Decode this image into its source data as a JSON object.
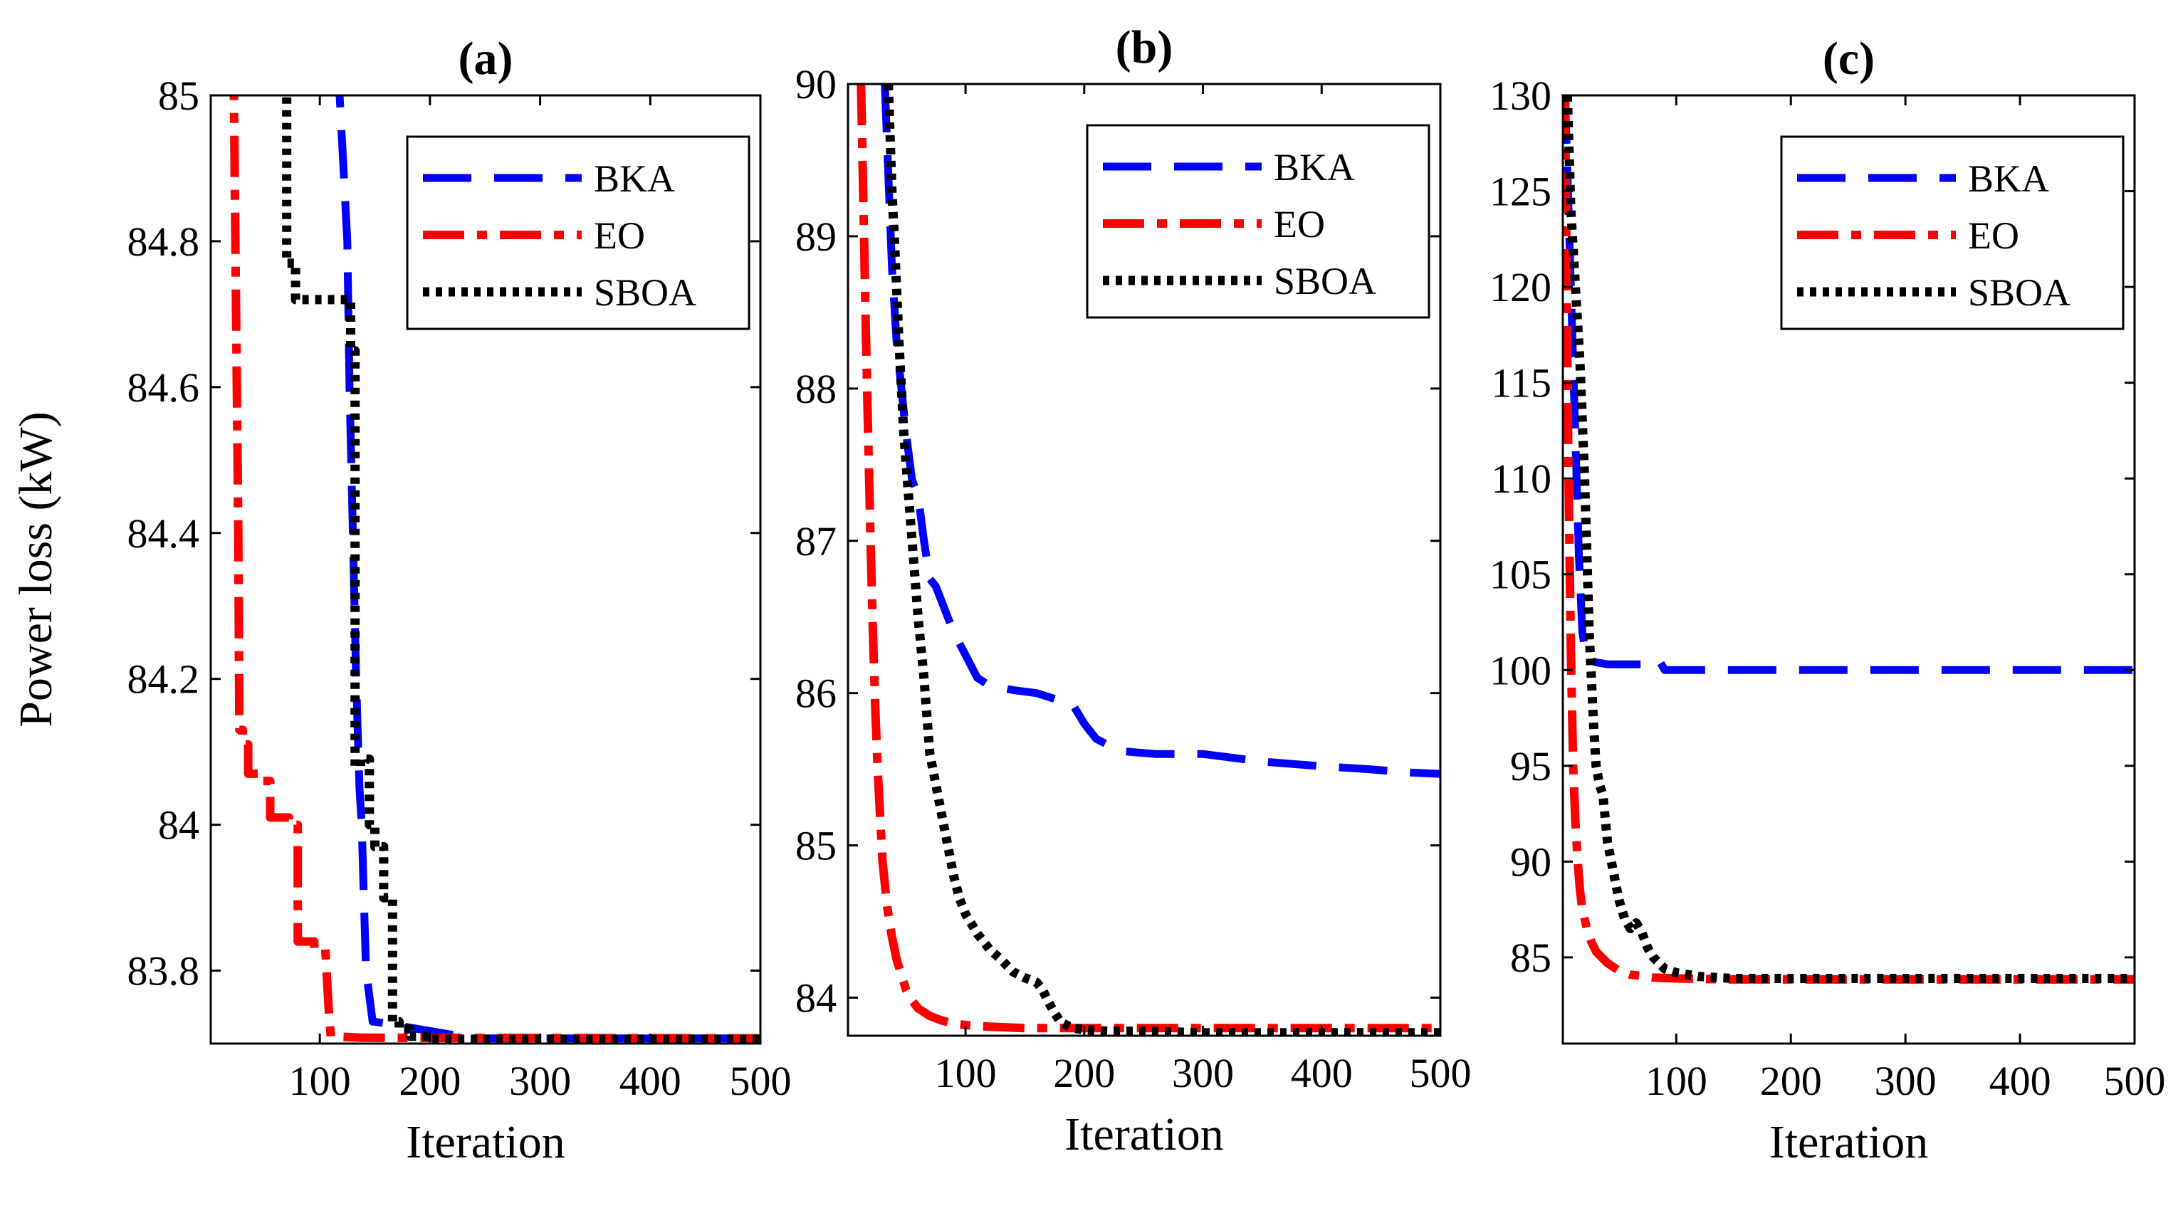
{
  "chart_data": [
    {
      "type": "line",
      "title": "(a)",
      "xlabel": "Iteration",
      "ylabel": "Power loss (kW)",
      "xlim": [
        1,
        500
      ],
      "ylim": [
        83.7,
        85.0
      ],
      "xticks": [
        100,
        200,
        300,
        400,
        500
      ],
      "xtick_labels": [
        "100",
        "200",
        "300",
        "400",
        "500"
      ],
      "yticks": [
        83.8,
        84.0,
        84.2,
        84.4,
        84.6,
        84.8,
        85.0
      ],
      "ytick_labels": [
        "83.8",
        "84",
        "84.2",
        "84.4",
        "84.6",
        "84.8",
        "85"
      ],
      "legend": {
        "position": "top-right",
        "entries": [
          "BKA",
          "EO",
          "SBOA"
        ]
      },
      "series": [
        {
          "name": "BKA",
          "color": "#0000ff",
          "style": "dashed",
          "x": [
            118,
            118,
            125,
            127,
            130,
            133,
            136,
            138,
            140,
            142,
            148,
            150,
            240,
            500
          ],
          "y": [
            85.05,
            85.0,
            84.8,
            84.6,
            84.4,
            84.2,
            84.05,
            84.0,
            83.9,
            83.8,
            83.73,
            83.73,
            83.707,
            83.707
          ]
        },
        {
          "name": "EO",
          "color": "#ff0000",
          "style": "dashdot",
          "x": [
            20,
            22,
            24,
            26,
            27,
            30,
            30,
            35,
            35,
            45,
            45,
            55,
            55,
            72,
            72,
            80,
            80,
            95,
            95,
            105,
            108,
            110,
            140,
            500
          ],
          "y": [
            85.05,
            85.0,
            84.7,
            84.4,
            84.13,
            84.13,
            84.11,
            84.11,
            84.07,
            84.07,
            84.06,
            84.06,
            84.01,
            84.01,
            84.0,
            84.0,
            83.84,
            83.84,
            83.83,
            83.83,
            83.75,
            83.71,
            83.708,
            83.707
          ]
        },
        {
          "name": "SBOA",
          "color": "#000000",
          "style": "dotted",
          "x": [
            70,
            70,
            78,
            78,
            128,
            128,
            132,
            132,
            137,
            137,
            145,
            145,
            150,
            150,
            158,
            158,
            166,
            166,
            172,
            172,
            182,
            182,
            200,
            200,
            500
          ],
          "y": [
            85.05,
            84.77,
            84.77,
            84.72,
            84.72,
            84.65,
            84.65,
            84.08,
            84.08,
            84.09,
            84.09,
            84.0,
            84.0,
            83.97,
            83.97,
            83.9,
            83.9,
            83.73,
            83.73,
            83.72,
            83.72,
            83.71,
            83.71,
            83.706,
            83.706
          ]
        }
      ]
    },
    {
      "type": "line",
      "title": "(b)",
      "xlabel": "Iteration",
      "ylabel": "",
      "xlim": [
        1,
        500
      ],
      "ylim": [
        83.75,
        90.0
      ],
      "xticks": [
        100,
        200,
        300,
        400,
        500
      ],
      "xtick_labels": [
        "100",
        "200",
        "300",
        "400",
        "500"
      ],
      "yticks": [
        84,
        85,
        86,
        87,
        88,
        89,
        90
      ],
      "ytick_labels": [
        "84",
        "85",
        "86",
        "87",
        "88",
        "89",
        "90"
      ],
      "legend": {
        "position": "top-right",
        "entries": [
          "BKA",
          "EO",
          "SBOA"
        ]
      },
      "series": [
        {
          "name": "BKA",
          "color": "#0000ff",
          "style": "dashed",
          "x": [
            32,
            35,
            38,
            42,
            46,
            50,
            55,
            60,
            65,
            70,
            75,
            80,
            90,
            100,
            110,
            120,
            140,
            160,
            180,
            190,
            200,
            210,
            230,
            260,
            300,
            350,
            400,
            440,
            470,
            500
          ],
          "y": [
            90.0,
            89.4,
            88.8,
            88.3,
            88.0,
            87.7,
            87.4,
            87.3,
            87.0,
            86.75,
            86.7,
            86.6,
            86.4,
            86.25,
            86.1,
            86.05,
            86.02,
            86.0,
            85.95,
            85.93,
            85.8,
            85.7,
            85.62,
            85.6,
            85.6,
            85.55,
            85.52,
            85.5,
            85.48,
            85.47
          ]
        },
        {
          "name": "EO",
          "color": "#ff0000",
          "style": "dashdot",
          "x": [
            12,
            14,
            16,
            18,
            20,
            22,
            24,
            26,
            28,
            30,
            34,
            38,
            42,
            46,
            50,
            55,
            60,
            70,
            80,
            90,
            100,
            120,
            150,
            200,
            500
          ],
          "y": [
            90.0,
            89.2,
            88.4,
            87.7,
            87.0,
            86.4,
            85.9,
            85.5,
            85.2,
            84.9,
            84.6,
            84.4,
            84.25,
            84.15,
            84.05,
            83.98,
            83.93,
            83.88,
            83.85,
            83.83,
            83.82,
            83.81,
            83.8,
            83.8,
            83.8
          ]
        },
        {
          "name": "SBOA",
          "color": "#000000",
          "style": "dotted",
          "x": [
            35,
            38,
            40,
            44,
            48,
            52,
            56,
            60,
            65,
            70,
            75,
            80,
            85,
            90,
            95,
            100,
            110,
            120,
            130,
            140,
            150,
            160,
            165,
            170,
            175,
            180,
            190,
            200,
            220,
            250,
            300,
            500
          ],
          "y": [
            90.0,
            89.3,
            89.0,
            88.3,
            87.7,
            87.3,
            86.9,
            86.5,
            86.1,
            85.6,
            85.4,
            85.2,
            85.0,
            84.8,
            84.65,
            84.55,
            84.42,
            84.32,
            84.25,
            84.17,
            84.13,
            84.1,
            84.05,
            83.97,
            83.9,
            83.84,
            83.8,
            83.79,
            83.78,
            83.78,
            83.77,
            83.77
          ]
        }
      ]
    },
    {
      "type": "line",
      "title": "(c)",
      "xlabel": "Iteration",
      "ylabel": "",
      "xlim": [
        1,
        500
      ],
      "ylim": [
        80.5,
        130.0
      ],
      "xticks": [
        100,
        200,
        300,
        400,
        500
      ],
      "xtick_labels": [
        "100",
        "200",
        "300",
        "400",
        "500"
      ],
      "yticks": [
        85,
        90,
        95,
        100,
        105,
        110,
        115,
        120,
        125,
        130
      ],
      "ytick_labels": [
        "85",
        "90",
        "95",
        "100",
        "105",
        "110",
        "115",
        "120",
        "125",
        "130"
      ],
      "legend": {
        "position": "top-right",
        "entries": [
          "BKA",
          "EO",
          "SBOA"
        ]
      },
      "series": [
        {
          "name": "BKA",
          "color": "#0000ff",
          "style": "dashed",
          "x": [
            3,
            6,
            9,
            12,
            15,
            18,
            21,
            25,
            30,
            40,
            60,
            80,
            85,
            90,
            100,
            200,
            300,
            400,
            500
          ],
          "y": [
            130.0,
            124.0,
            118.0,
            112.0,
            106.0,
            102.0,
            100.8,
            100.5,
            100.4,
            100.3,
            100.3,
            100.3,
            100.5,
            100.0,
            100.0,
            100.0,
            100.0,
            100.0,
            100.0
          ]
        },
        {
          "name": "EO",
          "color": "#ff0000",
          "style": "dashdot",
          "x": [
            3,
            4,
            6,
            8,
            10,
            12,
            14,
            16,
            18,
            22,
            26,
            30,
            40,
            50,
            60,
            80,
            100,
            150,
            200,
            500
          ],
          "y": [
            130.0,
            122.0,
            110.0,
            101.0,
            95.0,
            92.0,
            90.0,
            88.5,
            87.5,
            86.5,
            85.8,
            85.3,
            84.7,
            84.3,
            84.1,
            83.95,
            83.9,
            83.85,
            83.85,
            83.85
          ]
        },
        {
          "name": "SBOA",
          "color": "#000000",
          "style": "dotted",
          "x": [
            5,
            8,
            12,
            16,
            20,
            24,
            28,
            30,
            33,
            36,
            40,
            45,
            50,
            55,
            60,
            65,
            70,
            75,
            80,
            85,
            90,
            100,
            120,
            150,
            200,
            500
          ],
          "y": [
            130.0,
            124.0,
            120.0,
            116.0,
            110.0,
            102.0,
            97.0,
            95.0,
            94.0,
            93.5,
            91.0,
            89.5,
            88.0,
            87.0,
            86.5,
            86.8,
            86.3,
            85.5,
            85.0,
            84.7,
            84.4,
            84.2,
            84.0,
            83.9,
            83.9,
            83.9
          ]
        }
      ]
    }
  ]
}
